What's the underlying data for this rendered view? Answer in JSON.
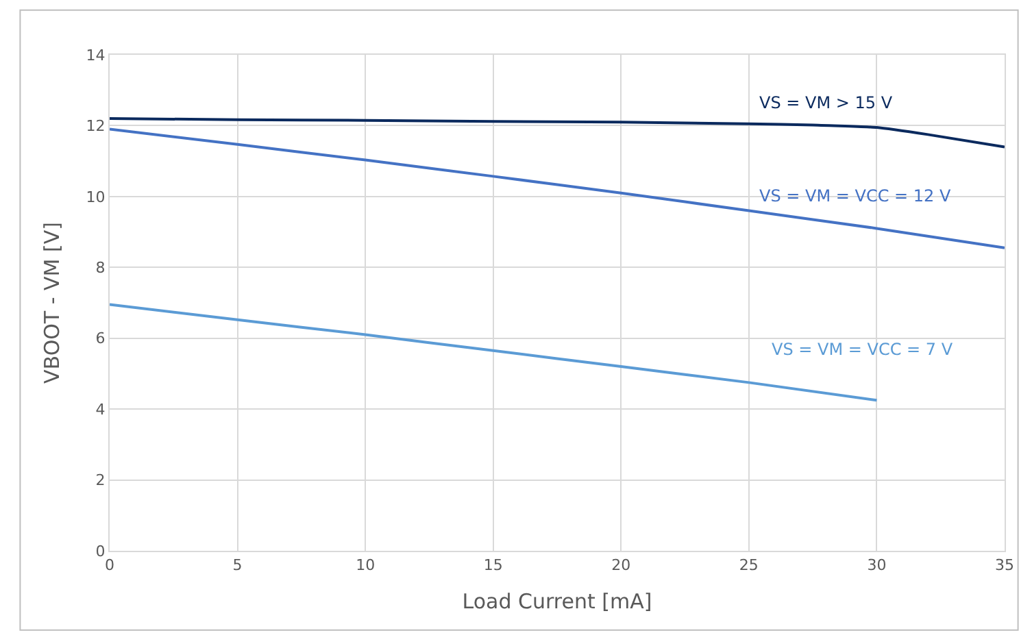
{
  "chart_data": {
    "type": "line",
    "xlabel": "Load Current [mA]",
    "ylabel": "VBOOT - VM [V]",
    "x": [
      0,
      5,
      10,
      15,
      20,
      25,
      27.5,
      30,
      32,
      35
    ],
    "series": [
      {
        "name": "VS = VM > 15 V",
        "color": "#0b2a5e",
        "values": [
          12.2,
          12.17,
          12.15,
          12.12,
          12.1,
          12.05,
          12.02,
          11.95,
          11.75,
          11.4
        ]
      },
      {
        "name": "VS = VM = VCC = 12 V",
        "color": "#4472c4",
        "x": [
          0,
          5,
          10,
          15,
          20,
          25,
          30,
          35
        ],
        "values": [
          11.9,
          11.47,
          11.03,
          10.57,
          10.1,
          9.6,
          9.1,
          8.55
        ]
      },
      {
        "name": "VS = VM = VCC = 7 V",
        "color": "#5b9bd5",
        "x": [
          0,
          5,
          10,
          15,
          20,
          25,
          30
        ],
        "values": [
          6.95,
          6.52,
          6.1,
          5.65,
          5.2,
          4.75,
          4.25
        ]
      }
    ],
    "xlim": [
      0,
      35
    ],
    "xticks": [
      0,
      5,
      10,
      15,
      20,
      25,
      30,
      35
    ],
    "ylim": [
      0,
      14
    ],
    "yticks": [
      0,
      2,
      4,
      6,
      8,
      10,
      12,
      14
    ],
    "grid": true,
    "legend": false,
    "marker": "none",
    "line_style": "solid"
  }
}
